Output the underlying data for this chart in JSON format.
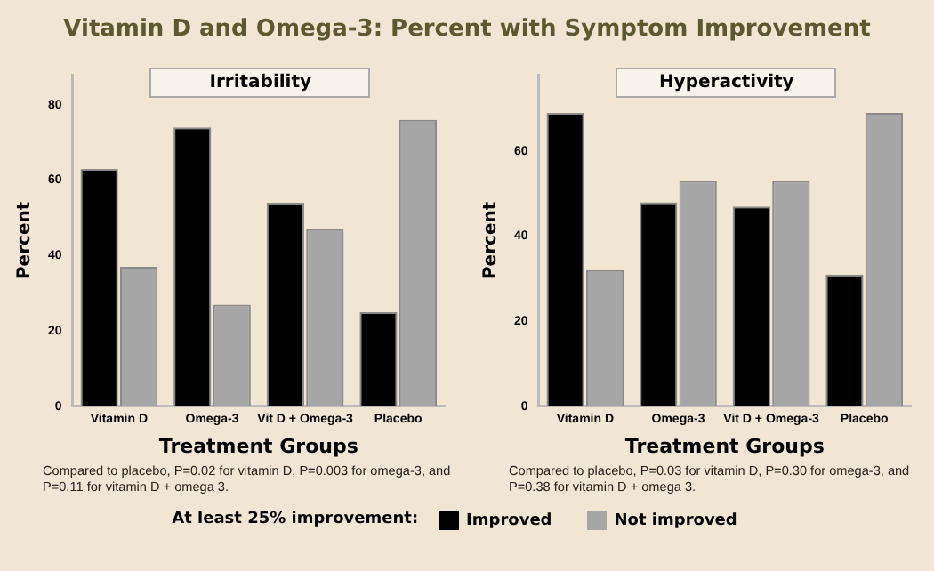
{
  "chart_data": [
    {
      "type": "bar",
      "title": "Vitamin D and Omega-3: Percent with Symptom Improvement",
      "subtitle": "Irritability",
      "xlabel": "Treatment Groups",
      "ylabel": "Percent",
      "legend_title": "At least 25% improvement:",
      "legend": "bottom",
      "grid": false,
      "categories": [
        "Vitamin D",
        "Omega-3",
        "Vit D + Omega-3",
        "Placebo"
      ],
      "series": [
        {
          "name": "Improved",
          "color": "#000000",
          "values": [
            63,
            74,
            54,
            25
          ]
        },
        {
          "name": "Not improved",
          "color": "#a6a6a6",
          "values": [
            37,
            27,
            47,
            76
          ]
        }
      ],
      "ylim": [
        0,
        88
      ],
      "yticks": [
        0,
        20,
        40,
        60,
        80
      ],
      "annotations": [
        "Compared to placebo, P=0.02 for vitamin D, P=0.003 for omega-3, and P=0.11 for vitamin D + omega 3."
      ]
    },
    {
      "type": "bar",
      "subtitle": "Hyperactivity",
      "xlabel": "Treatment Groups",
      "ylabel": "Percent",
      "grid": false,
      "categories": [
        "Vitamin D",
        "Omega-3",
        "Vit D + Omega-3",
        "Placebo"
      ],
      "series": [
        {
          "color": "#000000",
          "values": [
            69,
            48,
            47,
            31
          ]
        },
        {
          "color": "#a6a6a6",
          "values": [
            32,
            53,
            53,
            69
          ]
        }
      ],
      "ylim": [
        0,
        78
      ],
      "yticks": [
        0,
        20,
        40,
        60
      ],
      "annotations": [
        "Compared to placebo, P=0.03 for vitamin D, P=0.30 for omega-3, and P=0.38 for vitamin D + omega 3."
      ]
    }
  ]
}
